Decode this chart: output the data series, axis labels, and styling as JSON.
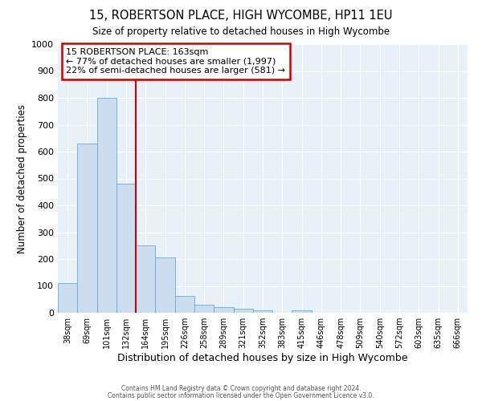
{
  "title1": "15, ROBERTSON PLACE, HIGH WYCOMBE, HP11 1EU",
  "title2": "Size of property relative to detached houses in High Wycombe",
  "xlabel": "Distribution of detached houses by size in High Wycombe",
  "ylabel": "Number of detached properties",
  "bar_labels": [
    "38sqm",
    "69sqm",
    "101sqm",
    "132sqm",
    "164sqm",
    "195sqm",
    "226sqm",
    "258sqm",
    "289sqm",
    "321sqm",
    "352sqm",
    "383sqm",
    "415sqm",
    "446sqm",
    "478sqm",
    "509sqm",
    "540sqm",
    "572sqm",
    "603sqm",
    "635sqm",
    "666sqm"
  ],
  "bar_heights": [
    110,
    630,
    800,
    480,
    250,
    205,
    63,
    30,
    22,
    15,
    10,
    0,
    10,
    0,
    0,
    0,
    0,
    0,
    0,
    0,
    0
  ],
  "bar_color": "#ccddef",
  "bar_edge_color": "#6aaad4",
  "vline_x_index": 4,
  "vline_color": "#cc0000",
  "annotation_line1": "15 ROBERTSON PLACE: 163sqm",
  "annotation_line2": "← 77% of detached houses are smaller (1,997)",
  "annotation_line3": "22% of semi-detached houses are larger (581) →",
  "annotation_box_color": "#cc0000",
  "ylim": [
    0,
    1000
  ],
  "footer1": "Contains HM Land Registry data © Crown copyright and database right 2024.",
  "footer2": "Contains public sector information licensed under the Open Government Licence v3.0.",
  "background_color": "#ffffff",
  "plot_bg_color": "#e8f0f8",
  "grid_color": "#ffffff"
}
